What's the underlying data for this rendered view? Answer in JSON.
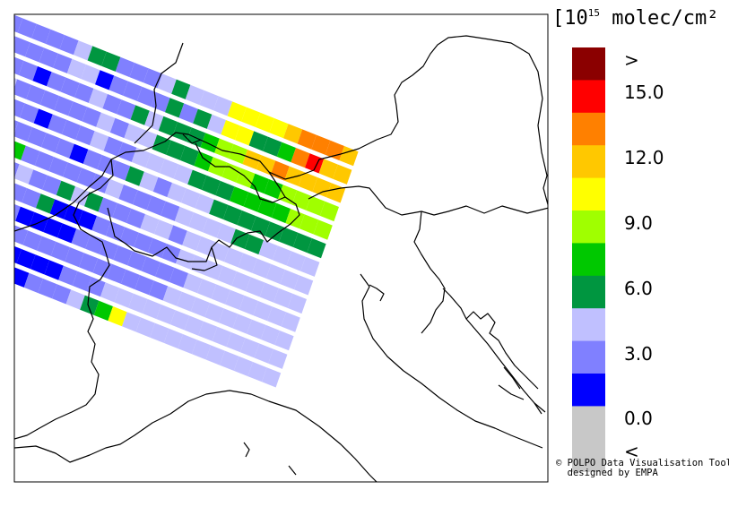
{
  "legend": {
    "title_prefix": "[10",
    "title_exp": "15",
    "title_suffix": " molec/cm² ]",
    "bins": [
      {
        "color": "#8b0000",
        "label": ">"
      },
      {
        "color": "#ff0000",
        "label": "15.0"
      },
      {
        "color": "#ff8000",
        "label": ""
      },
      {
        "color": "#ffc800",
        "label": "12.0"
      },
      {
        "color": "#ffff00",
        "label": ""
      },
      {
        "color": "#a0ff00",
        "label": "9.0"
      },
      {
        "color": "#00c800",
        "label": ""
      },
      {
        "color": "#009640",
        "label": "6.0"
      },
      {
        "color": "#c0c0ff",
        "label": ""
      },
      {
        "color": "#8080ff",
        "label": "3.0"
      },
      {
        "color": "#0000ff",
        "label": ""
      },
      {
        "color": "#c8c8c8",
        "label": "0.0"
      },
      {
        "color": "#c8c8c8",
        "label": "<"
      }
    ]
  },
  "credit": {
    "line1": "© POLPO Data Visualisation Tool",
    "line2": "designed by EMPA"
  },
  "swath": {
    "palette": [
      "#0000ff",
      "#8080ff",
      "#c0c0ff",
      "#009640",
      "#00c800",
      "#a0ff00",
      "#ffff00",
      "#ffc800",
      "#ff8000",
      "#ff0000"
    ],
    "rows": [
      [
        2,
        1,
        1,
        1,
        1,
        1,
        2,
        3,
        3,
        1,
        1,
        1,
        2,
        3,
        2,
        2,
        2,
        6,
        6,
        6,
        6,
        7,
        8,
        8,
        8,
        7
      ],
      [
        1,
        1,
        1,
        1,
        1,
        1,
        2,
        2,
        0,
        1,
        1,
        1,
        1,
        3,
        1,
        3,
        2,
        6,
        6,
        3,
        3,
        4,
        8,
        9,
        7,
        7
      ],
      [
        2,
        1,
        1,
        1,
        0,
        1,
        1,
        1,
        2,
        1,
        1,
        3,
        2,
        3,
        3,
        3,
        4,
        5,
        5,
        7,
        7,
        8,
        7,
        7,
        7,
        7
      ],
      [
        1,
        1,
        2,
        1,
        1,
        1,
        1,
        1,
        1,
        2,
        1,
        2,
        2,
        3,
        3,
        3,
        4,
        5,
        5,
        5,
        4,
        4,
        5,
        5,
        5,
        5
      ],
      [
        1,
        1,
        1,
        1,
        1,
        0,
        1,
        1,
        1,
        2,
        1,
        1,
        2,
        2,
        2,
        2,
        3,
        3,
        3,
        4,
        4,
        4,
        4,
        5,
        5,
        5
      ],
      [
        2,
        2,
        1,
        1,
        1,
        1,
        1,
        1,
        0,
        1,
        1,
        1,
        3,
        2,
        1,
        2,
        2,
        2,
        3,
        3,
        3,
        3,
        3,
        3,
        3,
        3
      ],
      [
        1,
        1,
        3,
        4,
        4,
        1,
        1,
        1,
        1,
        1,
        1,
        2,
        1,
        1,
        1,
        1,
        2,
        2,
        2,
        2,
        3,
        3,
        2,
        2,
        2,
        2
      ],
      [
        1,
        1,
        1,
        1,
        1,
        2,
        1,
        1,
        3,
        2,
        3,
        1,
        1,
        1,
        2,
        2,
        1,
        2,
        2,
        2,
        2,
        2,
        2,
        2,
        2,
        2
      ],
      [
        3,
        1,
        1,
        1,
        0,
        1,
        1,
        3,
        0,
        0,
        0,
        1,
        1,
        1,
        1,
        1,
        1,
        2,
        2,
        2,
        2,
        2,
        2,
        2,
        2,
        2
      ],
      [
        2,
        1,
        1,
        1,
        1,
        1,
        0,
        0,
        0,
        0,
        1,
        1,
        1,
        1,
        1,
        1,
        1,
        1,
        2,
        2,
        2,
        2,
        2,
        2,
        2,
        2
      ],
      [
        1,
        1,
        1,
        1,
        1,
        2,
        1,
        1,
        1,
        1,
        1,
        1,
        1,
        1,
        1,
        1,
        1,
        2,
        2,
        2,
        2,
        2,
        2,
        2,
        2,
        2
      ],
      [
        2,
        2,
        1,
        0,
        1,
        1,
        0,
        0,
        0,
        0,
        1,
        1,
        1,
        2,
        2,
        2,
        2,
        2,
        2,
        2,
        2,
        2,
        2,
        2,
        2,
        2
      ],
      [
        2,
        2,
        2,
        1,
        1,
        0,
        0,
        0,
        1,
        1,
        1,
        2,
        3,
        4,
        6,
        2,
        2,
        2,
        2,
        2,
        2,
        2,
        2,
        2,
        2,
        2
      ]
    ]
  }
}
